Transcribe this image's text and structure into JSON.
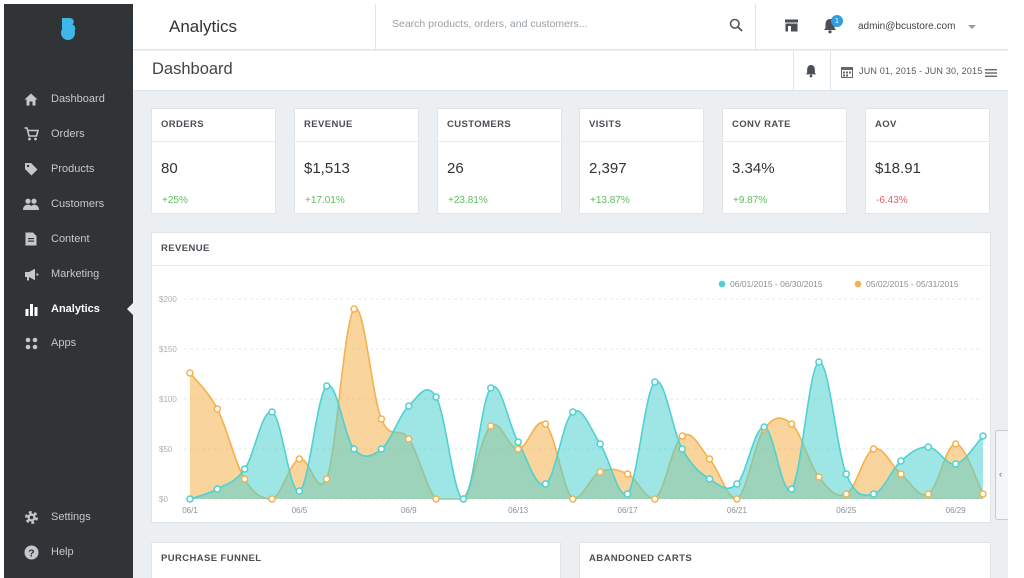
{
  "app": {
    "title": "Analytics"
  },
  "sidebar": {
    "items": [
      {
        "label": "Dashboard",
        "icon": "home-icon"
      },
      {
        "label": "Orders",
        "icon": "cart-icon"
      },
      {
        "label": "Products",
        "icon": "tag-icon"
      },
      {
        "label": "Customers",
        "icon": "people-icon"
      },
      {
        "label": "Content",
        "icon": "document-icon"
      },
      {
        "label": "Marketing",
        "icon": "megaphone-icon"
      },
      {
        "label": "Analytics",
        "icon": "bar-chart-icon",
        "active": true
      },
      {
        "label": "Apps",
        "icon": "apps-grid-icon"
      }
    ],
    "bottom_items": [
      {
        "label": "Settings",
        "icon": "gear-icon"
      },
      {
        "label": "Help",
        "icon": "help-icon"
      }
    ]
  },
  "header": {
    "search_placeholder": "Search products, orders, and customers...",
    "notification_count": "1",
    "user": "admin@bcustore.com"
  },
  "page": {
    "title": "Dashboard",
    "date_range": "JUN 01, 2015 - JUN 30, 2015"
  },
  "stats": [
    {
      "title": "ORDERS",
      "value": "80",
      "delta": "+25%",
      "trend": "up"
    },
    {
      "title": "REVENUE",
      "value": "$1,513",
      "delta": "+17.01%",
      "trend": "up"
    },
    {
      "title": "CUSTOMERS",
      "value": "26",
      "delta": "+23.81%",
      "trend": "up"
    },
    {
      "title": "VISITS",
      "value": "2,397",
      "delta": "+13.87%",
      "trend": "up"
    },
    {
      "title": "CONV RATE",
      "value": "3.34%",
      "delta": "+9.87%",
      "trend": "up"
    },
    {
      "title": "AOV",
      "value": "$18.91",
      "delta": "-6.43%",
      "trend": "down"
    }
  ],
  "revenue_panel": {
    "title": "REVENUE"
  },
  "bottom_panels": {
    "left_title": "PURCHASE FUNNEL",
    "right_title": "ABANDONED CARTS"
  },
  "colors": {
    "series_current": "#4fd1d1",
    "series_previous": "#f5b14c",
    "sidebar_bg": "#303437",
    "positive": "#5cbf5c",
    "negative": "#e0606a",
    "accent": "#2d9ee0"
  },
  "chart_data": {
    "type": "area",
    "title": "REVENUE",
    "x": [
      "06/1",
      "06/2",
      "06/3",
      "06/4",
      "06/5",
      "06/6",
      "06/7",
      "06/8",
      "06/9",
      "06/10",
      "06/11",
      "06/12",
      "06/13",
      "06/14",
      "06/15",
      "06/16",
      "06/17",
      "06/18",
      "06/19",
      "06/20",
      "06/21",
      "06/22",
      "06/23",
      "06/24",
      "06/25",
      "06/26",
      "06/27",
      "06/28",
      "06/29",
      "06/30"
    ],
    "x_tick_labels": [
      "06/1",
      "06/5",
      "06/9",
      "06/13",
      "06/17",
      "06/21",
      "06/25",
      "06/29"
    ],
    "y_tick_labels": [
      "$200",
      "$150",
      "$100",
      "$50",
      "$0"
    ],
    "ylim": [
      0,
      200
    ],
    "grid": true,
    "legend_position": "top-right",
    "series": [
      {
        "name": "06/01/2015 - 06/30/2015",
        "color": "#4fd1d1",
        "values": [
          0,
          10,
          30,
          87,
          8,
          113,
          50,
          50,
          93,
          102,
          0,
          111,
          57,
          15,
          87,
          55,
          5,
          117,
          50,
          20,
          15,
          72,
          10,
          137,
          25,
          5,
          38,
          52,
          35,
          63
        ]
      },
      {
        "name": "05/02/2015 - 05/31/2015",
        "color": "#f5b14c",
        "values": [
          126,
          90,
          20,
          0,
          40,
          20,
          190,
          80,
          60,
          0,
          0,
          73,
          50,
          75,
          0,
          27,
          25,
          0,
          63,
          40,
          0,
          70,
          75,
          22,
          5,
          50,
          25,
          5,
          55,
          5
        ]
      }
    ]
  }
}
